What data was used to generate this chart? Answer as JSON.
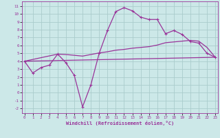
{
  "xlabel": "Windchill (Refroidissement éolien,°C)",
  "background_color": "#cce8e8",
  "grid_color": "#aacccc",
  "line_color": "#993399",
  "x_ticks": [
    0,
    1,
    2,
    3,
    4,
    5,
    6,
    7,
    8,
    9,
    10,
    11,
    12,
    13,
    14,
    15,
    16,
    17,
    18,
    19,
    20,
    21,
    22,
    23
  ],
  "y_ticks": [
    -2,
    -1,
    0,
    1,
    2,
    3,
    4,
    5,
    6,
    7,
    8,
    9,
    10,
    11
  ],
  "xlim": [
    -0.3,
    23.3
  ],
  "ylim": [
    -2.6,
    11.6
  ],
  "line1_x": [
    0,
    1,
    2,
    3,
    4,
    5,
    6,
    7,
    8,
    9,
    10,
    11,
    12,
    13,
    14,
    15,
    16,
    17,
    18,
    19,
    20,
    21,
    22,
    23
  ],
  "line1_y": [
    4.0,
    2.5,
    3.2,
    3.5,
    4.9,
    3.8,
    2.2,
    -1.8,
    1.0,
    5.0,
    7.9,
    10.3,
    10.8,
    10.4,
    9.6,
    9.3,
    9.3,
    7.5,
    7.9,
    7.4,
    6.5,
    6.3,
    5.0,
    4.5
  ],
  "line2_x": [
    0,
    23
  ],
  "line2_y": [
    4.0,
    4.5
  ],
  "line3_x": [
    0,
    4,
    5,
    6,
    7,
    8,
    9,
    10,
    11,
    12,
    13,
    14,
    15,
    16,
    17,
    18,
    19,
    20,
    21,
    22,
    23
  ],
  "line3_y": [
    4.0,
    4.9,
    4.85,
    4.75,
    4.65,
    4.85,
    5.05,
    5.2,
    5.4,
    5.5,
    5.65,
    5.75,
    5.85,
    6.05,
    6.35,
    6.45,
    6.55,
    6.65,
    6.55,
    5.75,
    4.5
  ]
}
